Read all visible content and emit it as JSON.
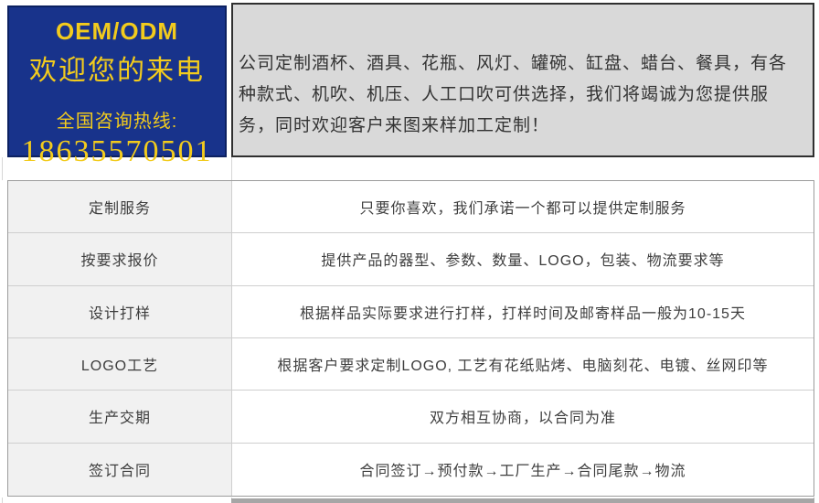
{
  "colors": {
    "promo_bg": "#18338b",
    "promo_text": "#f2cb1d",
    "intro_bg": "#d9d9d9",
    "label_cell_bg": "#f1f1f1"
  },
  "promo": {
    "title": "OEM/ODM",
    "welcome": "欢迎您的来电",
    "hotline_label": "全国咨询热线:",
    "phone_number": "18635570501"
  },
  "intro": {
    "text": "公司定制酒杯、酒具、花瓶、风灯、罐碗、缸盘、蜡台、餐具，有各种款式、机吹、机压、人工口吹可供选择，我们将竭诚为您提供服务，同时欢迎客户来图来样加工定制！"
  },
  "table": {
    "rows": [
      {
        "label": "定制服务",
        "value": "只要你喜欢，我们承诺一个都可以提供定制服务"
      },
      {
        "label": "按要求报价",
        "value": "提供产品的器型、参数、数量、LOGO，包装、物流要求等"
      },
      {
        "label": "设计打样",
        "value": "根据样品实际要求进行打样，打样时间及邮寄样品一般为10-15天"
      },
      {
        "label": "LOGO工艺",
        "value": "根据客户要求定制LOGO, 工艺有花纸贴烤、电脑刻花、电镀、丝网印等"
      },
      {
        "label": "生产交期",
        "value": "双方相互协商，以合同为准"
      },
      {
        "label": "签订合同",
        "value": "合同签订→预付款→工厂生产→合同尾款→物流"
      }
    ]
  }
}
